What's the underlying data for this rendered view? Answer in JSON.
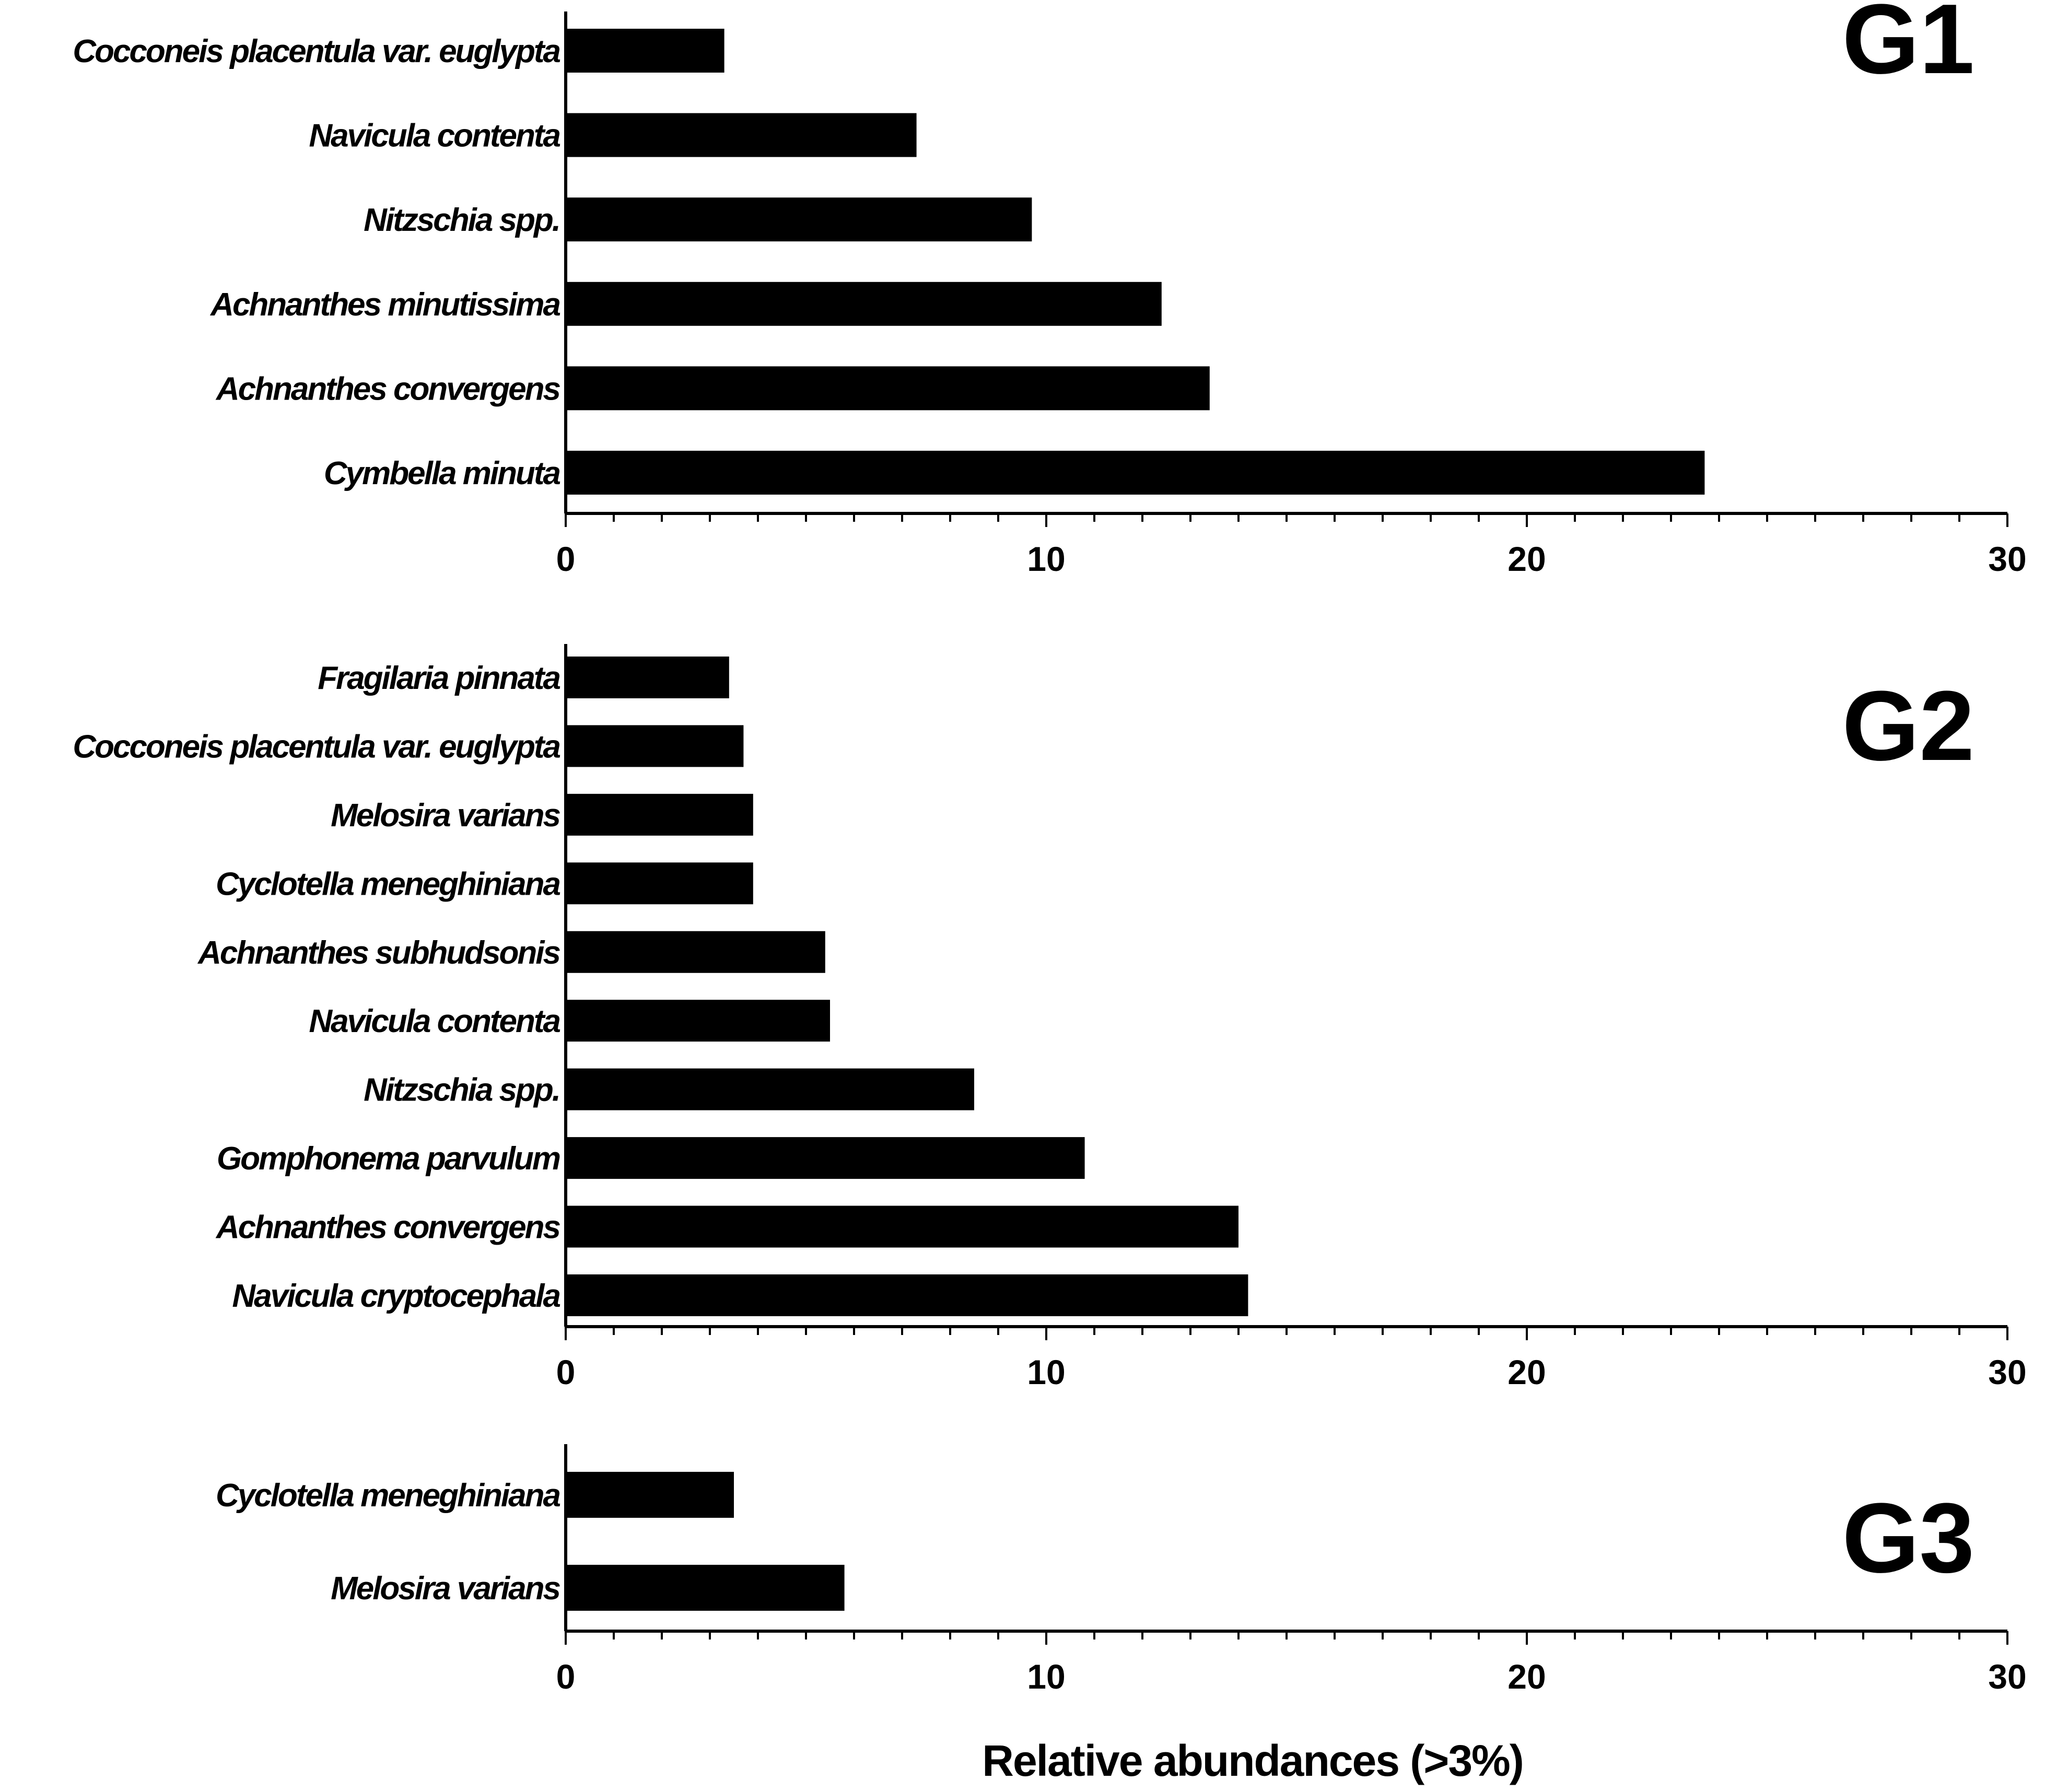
{
  "figure": {
    "xlabel": "Relative abundances (>3%)"
  },
  "chart_data": [
    {
      "type": "bar",
      "orientation": "horizontal",
      "title": "G1",
      "categories": [
        "Cocconeis placentula var. euglypta",
        "Navicula contenta",
        "Nitzschia spp.",
        "Achnanthes minutissima",
        "Achnanthes convergens",
        "Cymbella minuta"
      ],
      "values": [
        3.3,
        7.3,
        9.7,
        12.4,
        13.4,
        23.7
      ],
      "xlim": [
        0,
        30
      ],
      "xticks": [
        "0",
        "10",
        "20",
        "30"
      ],
      "grid": false,
      "bar_color": "#000000"
    },
    {
      "type": "bar",
      "orientation": "horizontal",
      "title": "G2",
      "categories": [
        "Fragilaria pinnata",
        "Cocconeis placentula var. euglypta",
        "Melosira varians",
        "Cyclotella meneghiniana",
        "Achnanthes subhudsonis",
        "Navicula contenta",
        "Nitzschia spp.",
        "Gomphonema parvulum",
        "Achnanthes convergens",
        "Navicula cryptocephala"
      ],
      "values": [
        3.4,
        3.7,
        3.9,
        3.9,
        5.4,
        5.5,
        8.5,
        10.8,
        14.0,
        14.2
      ],
      "xlim": [
        0,
        30
      ],
      "xticks": [
        "0",
        "10",
        "20",
        "30"
      ],
      "grid": false,
      "bar_color": "#000000"
    },
    {
      "type": "bar",
      "orientation": "horizontal",
      "title": "G3",
      "categories": [
        "Cyclotella meneghiniana",
        "Melosira varians"
      ],
      "values": [
        3.5,
        5.8
      ],
      "xlim": [
        0,
        30
      ],
      "xticks": [
        "0",
        "10",
        "20",
        "30"
      ],
      "grid": false,
      "bar_color": "#000000"
    }
  ]
}
